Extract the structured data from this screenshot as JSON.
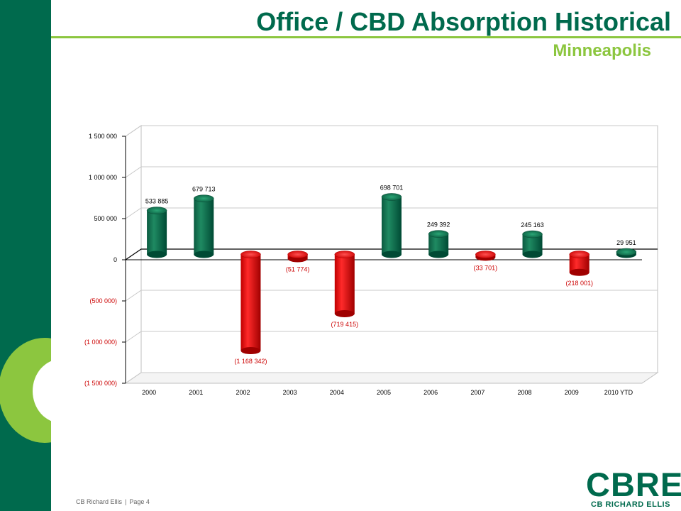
{
  "header": {
    "title": "Office / CBD Absorption Historical",
    "subtitle": "Minneapolis"
  },
  "footer": {
    "company": "CB Richard Ellis",
    "separator": "|",
    "page": "Page 4"
  },
  "logo": {
    "mark": "CBRE",
    "name": "CB RICHARD ELLIS"
  },
  "colors": {
    "brand_green": "#006A4D",
    "accent_green": "#8CC63F",
    "positive_bar": "#006A4D",
    "negative_bar": "#E00000",
    "negative_label": "#CC0000"
  },
  "chart_data": {
    "type": "bar",
    "style": "3d-cylinder",
    "title": "",
    "xlabel": "",
    "ylabel": "",
    "categories": [
      "2000",
      "2001",
      "2002",
      "2003",
      "2004",
      "2005",
      "2006",
      "2007",
      "2008",
      "2009",
      "2010 YTD"
    ],
    "values": [
      533885,
      679713,
      -1168342,
      -51774,
      -719415,
      698701,
      249392,
      -33701,
      245163,
      -218001,
      29951
    ],
    "data_labels": [
      "533 885",
      "679 713",
      "(1 168 342)",
      "(51 774)",
      "(719 415)",
      "698 701",
      "249 392",
      "(33 701)",
      "245 163",
      "(218 001)",
      "29 951"
    ],
    "y_ticks": [
      1500000,
      1000000,
      500000,
      0,
      -500000,
      -1000000,
      -1500000
    ],
    "y_tick_labels": [
      "1 500 000",
      "1 000 000",
      "500 000",
      "0",
      "(500 000)",
      "(1 000 000)",
      "(1 500 000)"
    ],
    "ylim": [
      -1500000,
      1500000
    ],
    "grid": true,
    "legend": "none"
  }
}
